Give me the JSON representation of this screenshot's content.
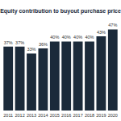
{
  "chart_data": {
    "type": "bar",
    "title": "Equity contribution to buyout purchase price",
    "categories": [
      "2011",
      "2012",
      "2013",
      "2014",
      "2015",
      "2016",
      "2017",
      "2018",
      "2019",
      "2020"
    ],
    "values": [
      37,
      37,
      33,
      36,
      40,
      40,
      40,
      40,
      43,
      47
    ],
    "value_labels": [
      "37%",
      "37%",
      "33%",
      "36%",
      "40%",
      "40%",
      "40%",
      "40%",
      "43%",
      "47%"
    ],
    "color": "#1b2a3a",
    "ylim": [
      0,
      50
    ],
    "grid": false,
    "data_labels": true,
    "tick_labels": "x"
  }
}
